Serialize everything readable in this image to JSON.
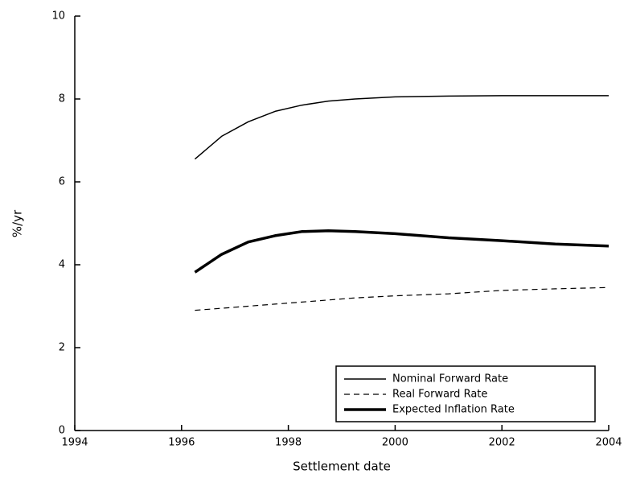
{
  "chart_data": {
    "type": "line",
    "xlabel": "Settlement date",
    "ylabel": "%/yr",
    "x": [
      1996.25,
      1996.75,
      1997.25,
      1997.75,
      1998.25,
      1998.75,
      1999.25,
      2000,
      2001,
      2002,
      2003,
      2004
    ],
    "series": [
      {
        "name": "Nominal Forward Rate",
        "color": "#000000",
        "width": 1.5,
        "dash": false,
        "values": [
          6.55,
          7.1,
          7.45,
          7.7,
          7.85,
          7.95,
          8.0,
          8.05,
          8.07,
          8.08,
          8.08,
          8.08
        ]
      },
      {
        "name": "Real Forward Rate",
        "color": "#000000",
        "width": 1.2,
        "dash": true,
        "values": [
          2.9,
          2.95,
          3.0,
          3.05,
          3.1,
          3.15,
          3.2,
          3.25,
          3.3,
          3.38,
          3.42,
          3.45
        ]
      },
      {
        "name": "Expected Inflation Rate",
        "color": "#000000",
        "width": 3.5,
        "dash": false,
        "values": [
          3.82,
          4.25,
          4.55,
          4.7,
          4.8,
          4.82,
          4.8,
          4.75,
          4.65,
          4.58,
          4.5,
          4.45
        ]
      }
    ],
    "xlim": [
      1994,
      2004
    ],
    "xticks": [
      1994,
      1996,
      1998,
      2000,
      2002,
      2004
    ],
    "ylim": [
      0,
      10
    ],
    "yticks": [
      0,
      2,
      4,
      6,
      8,
      10
    ],
    "grid": false,
    "legend": "lower right"
  }
}
